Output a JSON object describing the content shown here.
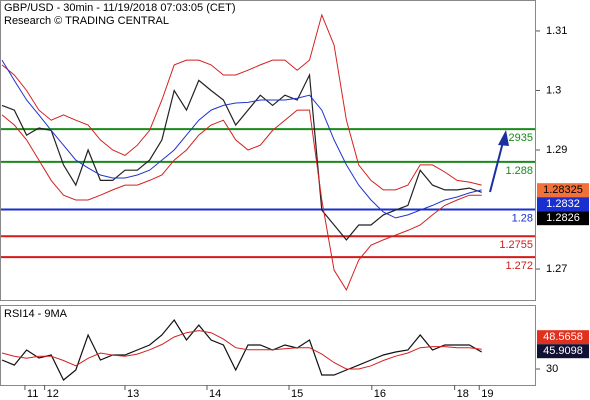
{
  "chart_data": [
    {
      "type": "line",
      "title": "GBP/USD - 30min - 11/19/2018 07:03:05 (CET)",
      "subtitle": "Research © TRADING CENTRAL",
      "x": [
        -1.5,
        -1.35,
        -1.2,
        -1.05,
        -0.9,
        -0.75,
        -0.6,
        -0.45,
        -0.3,
        -0.15,
        0,
        0.15,
        0.3,
        0.45,
        0.6,
        0.75,
        0.9,
        1.05,
        1.2,
        1.35,
        1.5,
        1.65,
        1.8,
        1.95,
        2.1,
        2.25,
        2.4,
        2.55,
        2.7,
        2.85,
        3,
        3.15,
        3.3,
        3.45,
        3.6,
        3.75,
        3.9,
        4.05,
        4.2,
        4.35
      ],
      "ylim": [
        1.2648,
        1.3152
      ],
      "yticks": [
        1.27,
        1.29,
        1.3,
        1.31
      ],
      "series": [
        {
          "color": "#222222",
          "values": [
            1.2975,
            1.2967,
            1.2925,
            1.2937,
            1.2933,
            1.2875,
            1.2841,
            1.29,
            1.2849,
            1.2849,
            1.2866,
            1.2866,
            1.2883,
            1.2917,
            1.3,
            1.2967,
            1.3017,
            1.3,
            1.2984,
            1.2942,
            1.2967,
            1.2992,
            1.2975,
            1.2992,
            1.2984,
            1.3026,
            1.2799,
            1.2774,
            1.2749,
            1.2774,
            1.2774,
            1.2791,
            1.2799,
            1.2807,
            1.2866,
            1.2841,
            1.2833,
            1.2833,
            1.2836,
            1.2829
          ]
        },
        {
          "color": "#d42020",
          "values": [
            1.3043,
            1.3026,
            1.3,
            1.2967,
            1.295,
            1.2959,
            1.295,
            1.2942,
            1.2917,
            1.29,
            1.2891,
            1.2908,
            1.2933,
            1.2984,
            1.3043,
            1.3051,
            1.3051,
            1.3043,
            1.3026,
            1.3026,
            1.3034,
            1.3043,
            1.3051,
            1.3051,
            1.3034,
            1.3051,
            1.3127,
            1.3076,
            1.295,
            1.2875,
            1.2849,
            1.2833,
            1.2833,
            1.2841,
            1.2875,
            1.2875,
            1.2863,
            1.2849,
            1.2846,
            1.2841
          ]
        },
        {
          "color": "#d42020",
          "values": [
            1.2959,
            1.2942,
            1.2917,
            1.2883,
            1.2849,
            1.2824,
            1.2816,
            1.2816,
            1.2824,
            1.2833,
            1.2841,
            1.2841,
            1.2849,
            1.2858,
            1.2883,
            1.29,
            1.2925,
            1.2942,
            1.295,
            1.2917,
            1.29,
            1.2908,
            1.2933,
            1.295,
            1.2967,
            1.2967,
            1.2816,
            1.2698,
            1.2665,
            1.2715,
            1.274,
            1.2749,
            1.2757,
            1.2765,
            1.2774,
            1.2791,
            1.2807,
            1.2816,
            1.2824,
            1.2824
          ]
        },
        {
          "color": "#2233cc",
          "values": [
            1.3051,
            1.3017,
            1.2984,
            1.2959,
            1.2933,
            1.2908,
            1.2883,
            1.287,
            1.2858,
            1.2853,
            1.2853,
            1.2858,
            1.2866,
            1.2883,
            1.29,
            1.2925,
            1.295,
            1.2967,
            1.2975,
            1.2979,
            1.298,
            1.2984,
            1.2984,
            1.2984,
            1.2987,
            1.2992,
            1.2967,
            1.2917,
            1.2875,
            1.2841,
            1.2816,
            1.2796,
            1.2786,
            1.2791,
            1.2799,
            1.2807,
            1.2816,
            1.2821,
            1.2828,
            1.2833
          ]
        }
      ],
      "levels": [
        {
          "value": 1.2935,
          "label": "2935",
          "color": "#1a8a1a"
        },
        {
          "value": 1.288,
          "label": "1.288",
          "color": "#1a8a1a"
        },
        {
          "value": 1.28,
          "label": "1.28",
          "color": "#1a2fd0"
        },
        {
          "value": 1.2755,
          "label": "1.2755",
          "color": "#d41a1a"
        },
        {
          "value": 1.272,
          "label": "1.272",
          "color": "#d41a1a"
        }
      ],
      "price_labels": [
        {
          "value": 1.28325,
          "color": "#f2703a",
          "text_color": "#000000"
        },
        {
          "value": 1.2832,
          "color": "#1a2fd0",
          "text_color": "#ffffff"
        },
        {
          "value": 1.2826,
          "color": "#000000",
          "text_color": "#ffffff"
        }
      ]
    },
    {
      "type": "line",
      "title": "RSI14 - 9MA",
      "xlim": [
        -1.524,
        5.0
      ],
      "xticks": [
        {
          "value": -1.22,
          "label": "11"
        },
        {
          "value": -0.98,
          "label": "12"
        },
        {
          "value": 0,
          "label": "13"
        },
        {
          "value": 1,
          "label": "14"
        },
        {
          "value": 2,
          "label": "15"
        },
        {
          "value": 3.01,
          "label": "16"
        },
        {
          "value": 4.02,
          "label": "18"
        },
        {
          "value": 4.32,
          "label": "19"
        }
      ],
      "ylim": [
        15,
        90
      ],
      "yticks": [
        30
      ],
      "series": [
        {
          "color": "#111111",
          "values": [
            38.4,
            33.7,
            47.8,
            40.3,
            43.1,
            19.7,
            29.1,
            61.9,
            38.4,
            43.1,
            43.1,
            47.8,
            52.5,
            61.9,
            75.9,
            57.2,
            71.2,
            57.2,
            52.5,
            29.1,
            52.5,
            52.5,
            47.8,
            52.5,
            49.7,
            57.2,
            24.4,
            24.4,
            29.1,
            33.7,
            38.4,
            43.1,
            45.9,
            47.8,
            61.9,
            47.8,
            52.5,
            52.5,
            52.5,
            45.9098
          ]
        },
        {
          "color": "#d42020",
          "values": [
            45,
            42,
            40,
            42,
            42,
            38,
            33,
            40,
            45,
            43,
            42,
            44,
            48,
            53,
            60,
            64,
            66,
            64,
            58,
            50,
            48,
            48,
            48,
            49,
            50,
            50,
            44,
            36,
            30,
            30,
            33,
            38,
            42,
            45,
            50,
            51,
            51,
            50,
            50,
            48.5658
          ]
        }
      ],
      "value_labels": [
        {
          "value": 48.5658,
          "color": "#e0301e",
          "text_color": "#ffffff"
        },
        {
          "value": 45.9098,
          "color": "#111133",
          "text_color": "#ffffff"
        }
      ]
    }
  ]
}
